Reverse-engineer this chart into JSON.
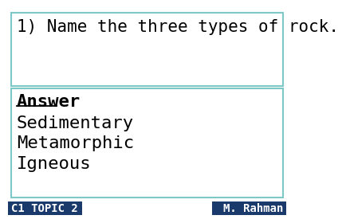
{
  "question_text": "1) Name the three types of rock.",
  "answer_label": "Answer",
  "answer_items": [
    "Sedimentary",
    "Metamorphic",
    "Igneous"
  ],
  "footer_left": "C1 TOPIC 2",
  "footer_right": "M. Rahman",
  "bg_color": "#ffffff",
  "box_border_color": "#7ec8c8",
  "footer_bg_color": "#1a3a6b",
  "footer_text_color": "#ffffff",
  "question_fontsize": 15,
  "answer_label_fontsize": 16,
  "answer_item_fontsize": 16,
  "footer_fontsize": 10
}
